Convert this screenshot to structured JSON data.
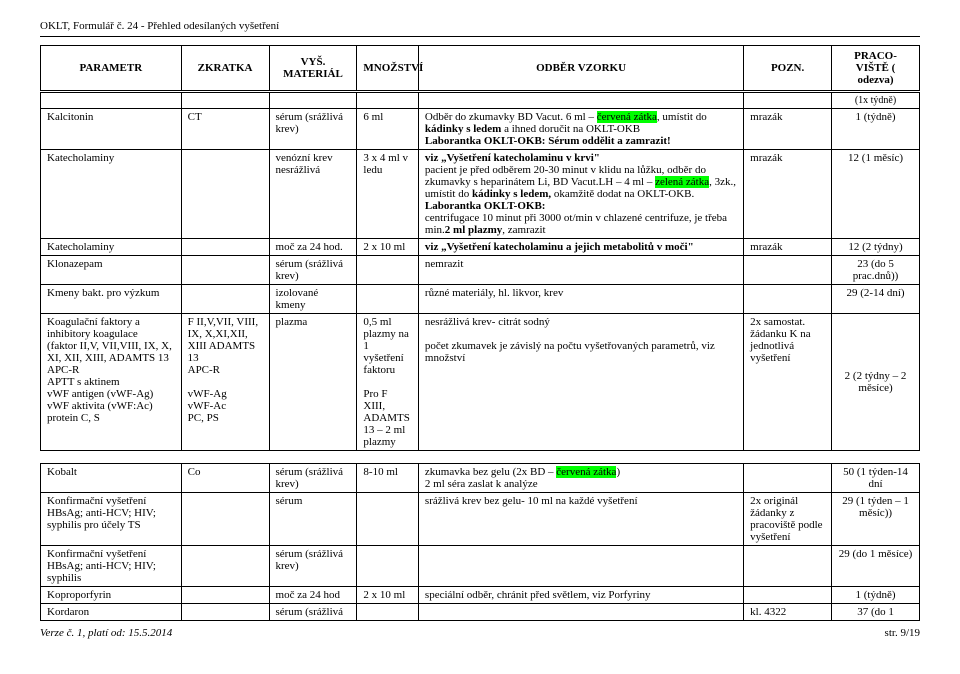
{
  "header": "OKLT, Formulář č. 24 - Přehled odesílaných vyšetření",
  "columns": {
    "c1": "PARAMETR",
    "c2": "ZKRATKA",
    "c3": "VYŠ. MATERIÁL",
    "c4": "MNOŽSTVÍ",
    "c5": "ODBĚR VZORKU",
    "c6": "POZN.",
    "c7": "PRACO-VIŠTĚ ( odezva)"
  },
  "note_row": "(1x týdně)",
  "rows": {
    "kalcitonin": {
      "param": "Kalcitonin",
      "zkr": "CT",
      "mat": "sérum (srážlivá krev)",
      "mn": "6 ml",
      "odber_a": "Odběr do zkumavky BD Vacut. 6 ml – ",
      "odber_hl": "červená zátka",
      "odber_b": ", umístit do ",
      "odber_c": "kádinky s ledem",
      "odber_d": " a ihned doručit na OKLT-OKB",
      "odber_e": "Laborantka OKLT-OKB: Sérum oddělit a zamrazit!",
      "pozn": "mrazák",
      "prac": "1 (týdně)"
    },
    "katech1": {
      "param": "Katecholaminy",
      "mat": "venózní krev nesrážlivá",
      "mn": "3 x 4 ml v ledu",
      "odber_a": "viz „Vyšetření katecholaminu v krvi\"",
      "odber_b": "pacient je před odběrem 20-30 minut v klidu na lůžku, odběr do zkumavky s heparinátem Li, BD Vacut.LH – 4 ml – ",
      "odber_hl": "zelená zátka",
      "odber_c": ", 3zk., umístit do ",
      "odber_d": "kádinky s ledem,",
      "odber_e": " okamžitě dodat na OKLT-OKB.",
      "odber_f": "Laborantka OKLT-OKB:",
      "odber_g": "centrifugace 10 minut při 3000 ot/min v chlazené centrifuze, je třeba min.",
      "odber_h": "2 ml plazmy",
      "odber_i": ", zamrazit",
      "pozn": "mrazák",
      "prac": "12 (1 měsíc)"
    },
    "katech2": {
      "param": "Katecholaminy",
      "mat": "moč za 24 hod.",
      "mn": "2 x 10 ml",
      "odber": "viz „Vyšetření katecholaminu a jejich metabolitů v moči\"",
      "pozn": "mrazák",
      "prac": "12 (2 týdny)"
    },
    "klonazepam": {
      "param": "Klonazepam",
      "mat": "sérum (srážlivá krev)",
      "odber": "nemrazit",
      "prac": "23 (do 5 prac.dnů))"
    },
    "kmeny": {
      "param": "Kmeny bakt. pro výzkum",
      "mat": "izolované kmeny",
      "odber": "různé materiály, hl. likvor, krev",
      "prac": "29 (2-14 dní)"
    },
    "koag": {
      "param_a": "Koagulační faktory a inhibitory koagulace",
      "param_b": "(faktor II,V, VII,VIII, IX, X, XI, XII, XIII, ADAMTS 13",
      "param_c": "APC-R",
      "param_d": "APTT s aktinem",
      "param_e": "vWF antigen (vWF-Ag)",
      "param_f": "vWF aktivita (vWF:Ac)",
      "param_g": "protein C, S",
      "zkr_a": "F II,V,VII, VIII, IX, X,XI,XII, XIII ADAMTS 13",
      "zkr_b": "APC-R",
      "zkr_c": "vWF-Ag",
      "zkr_d": "vWF-Ac",
      "zkr_e": "PC, PS",
      "mat": "plazma",
      "mn_a": "0,5 ml plazmy na 1 vyšetření faktoru",
      "mn_b": "Pro F XIII, ADAMTS 13 – 2 ml plazmy",
      "odber_a": "nesrážlivá krev- citrát sodný",
      "odber_b": "počet zkumavek je závislý na počtu vyšetřovaných parametrů, viz množství",
      "pozn": "2x samostat. žádanku K na jednotlivá vyšetření",
      "prac": "2 (2 týdny – 2 měsíce)"
    },
    "kobalt": {
      "param": "Kobalt",
      "zkr": "Co",
      "mat": "sérum (srážlivá krev)",
      "mn": "8-10 ml",
      "odber_a": "zkumavka bez gelu (2x BD – ",
      "odber_hl": "červená zátka",
      "odber_b": ")",
      "odber_c": "2 ml séra zaslat k analýze",
      "prac": "50 (1 týden-14 dní"
    },
    "konf1": {
      "param": "Konfirmační vyšetření HBsAg; anti-HCV; HIV; syphilis pro účely TS",
      "mat": "sérum",
      "odber": "srážlivá krev bez gelu- 10 ml na každé vyšetření",
      "pozn": "2x originál žádanky z pracoviště podle vyšetření",
      "prac": "29 (1 týden – 1 měsíc))"
    },
    "konf2": {
      "param": "Konfirmační vyšetření HBsAg; anti-HCV; HIV; syphilis",
      "mat": "sérum (srážlivá krev)",
      "prac": "29 (do 1 měsíce)"
    },
    "kopro": {
      "param": "Koproporfyrin",
      "mat": "moč za 24 hod",
      "mn": "2 x 10 ml",
      "odber": "speciální odběr, chránit před světlem, viz Porfyriny",
      "prac": "1 (týdně)"
    },
    "kordaron": {
      "param": "Kordaron",
      "mat": "sérum (srážlivá",
      "pozn": "kl. 4322",
      "prac": "37 (do 1"
    }
  },
  "footer": {
    "left": "Verze č. 1, platí od: 15.5.2014",
    "right": "str. 9/19"
  }
}
